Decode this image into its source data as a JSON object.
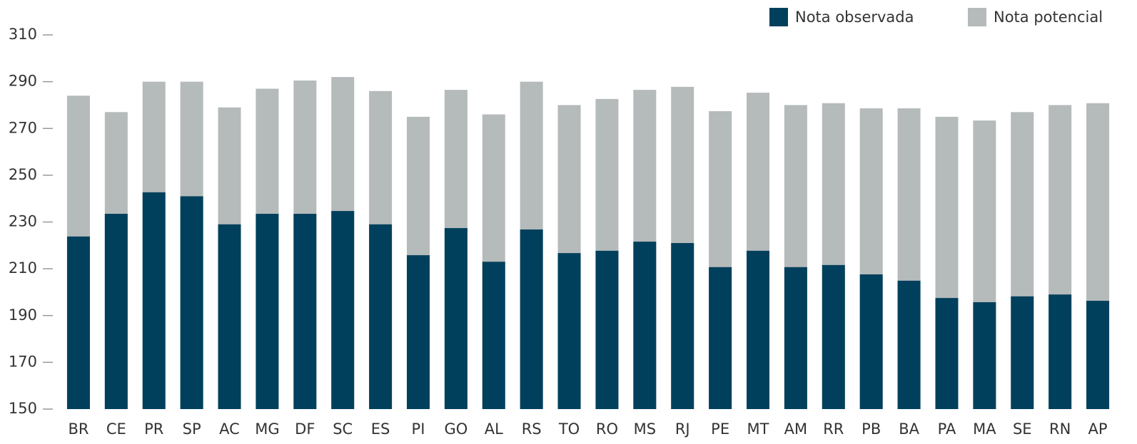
{
  "chart_data": {
    "type": "bar",
    "categories": [
      "BR",
      "CE",
      "PR",
      "SP",
      "AC",
      "MG",
      "DF",
      "SC",
      "ES",
      "PI",
      "GO",
      "AL",
      "RS",
      "TO",
      "RO",
      "MS",
      "RJ",
      "PE",
      "MT",
      "AM",
      "RR",
      "PB",
      "BA",
      "PA",
      "MA",
      "SE",
      "RN",
      "AP"
    ],
    "series": [
      {
        "name": "Nota observada",
        "color": "#01405c",
        "values": [
          223.8,
          233.5,
          242.7,
          241,
          229,
          233.5,
          233.5,
          234.7,
          229,
          215.8,
          227.4,
          213,
          226.8,
          216.7,
          217.7,
          221.6,
          221,
          210.7,
          217.7,
          210.7,
          211.6,
          207.6,
          204.9,
          197.5,
          195.7,
          198.2,
          199,
          196.3
        ]
      },
      {
        "name": "Nota potencial",
        "color": "#b5babb",
        "values": [
          284,
          277,
          290,
          290,
          279,
          287,
          290.5,
          292,
          286,
          275,
          286.5,
          276,
          290,
          280,
          282.6,
          286.5,
          287.8,
          277.4,
          285.3,
          280,
          280.8,
          278.6,
          278.6,
          275,
          273.4,
          277,
          280,
          280.8
        ]
      }
    ],
    "ylim": [
      150,
      310
    ],
    "yticks": [
      150,
      170,
      190,
      210,
      230,
      250,
      270,
      290,
      310
    ]
  }
}
